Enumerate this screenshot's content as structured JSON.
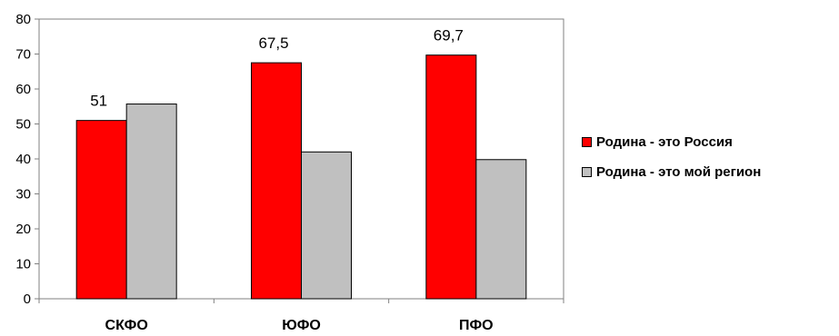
{
  "chart_data": {
    "type": "bar",
    "categories": [
      "СКФО",
      "ЮФО",
      "ПФО"
    ],
    "series": [
      {
        "name": "Родина - это Россия",
        "values": [
          51,
          67.5,
          69.7
        ],
        "color": "#ff0000",
        "data_labels": [
          "51",
          "67,5",
          "69,7"
        ]
      },
      {
        "name": "Родина - это мой регион",
        "values": [
          55.7,
          42,
          39.8
        ],
        "color": "#c0c0c0"
      }
    ],
    "ylim": [
      0,
      80
    ],
    "yticks": [
      "0",
      "10",
      "20",
      "30",
      "40",
      "50",
      "60",
      "70",
      "80"
    ],
    "grid": false,
    "legend_position": "right",
    "title": "",
    "xlabel": "",
    "ylabel": ""
  }
}
